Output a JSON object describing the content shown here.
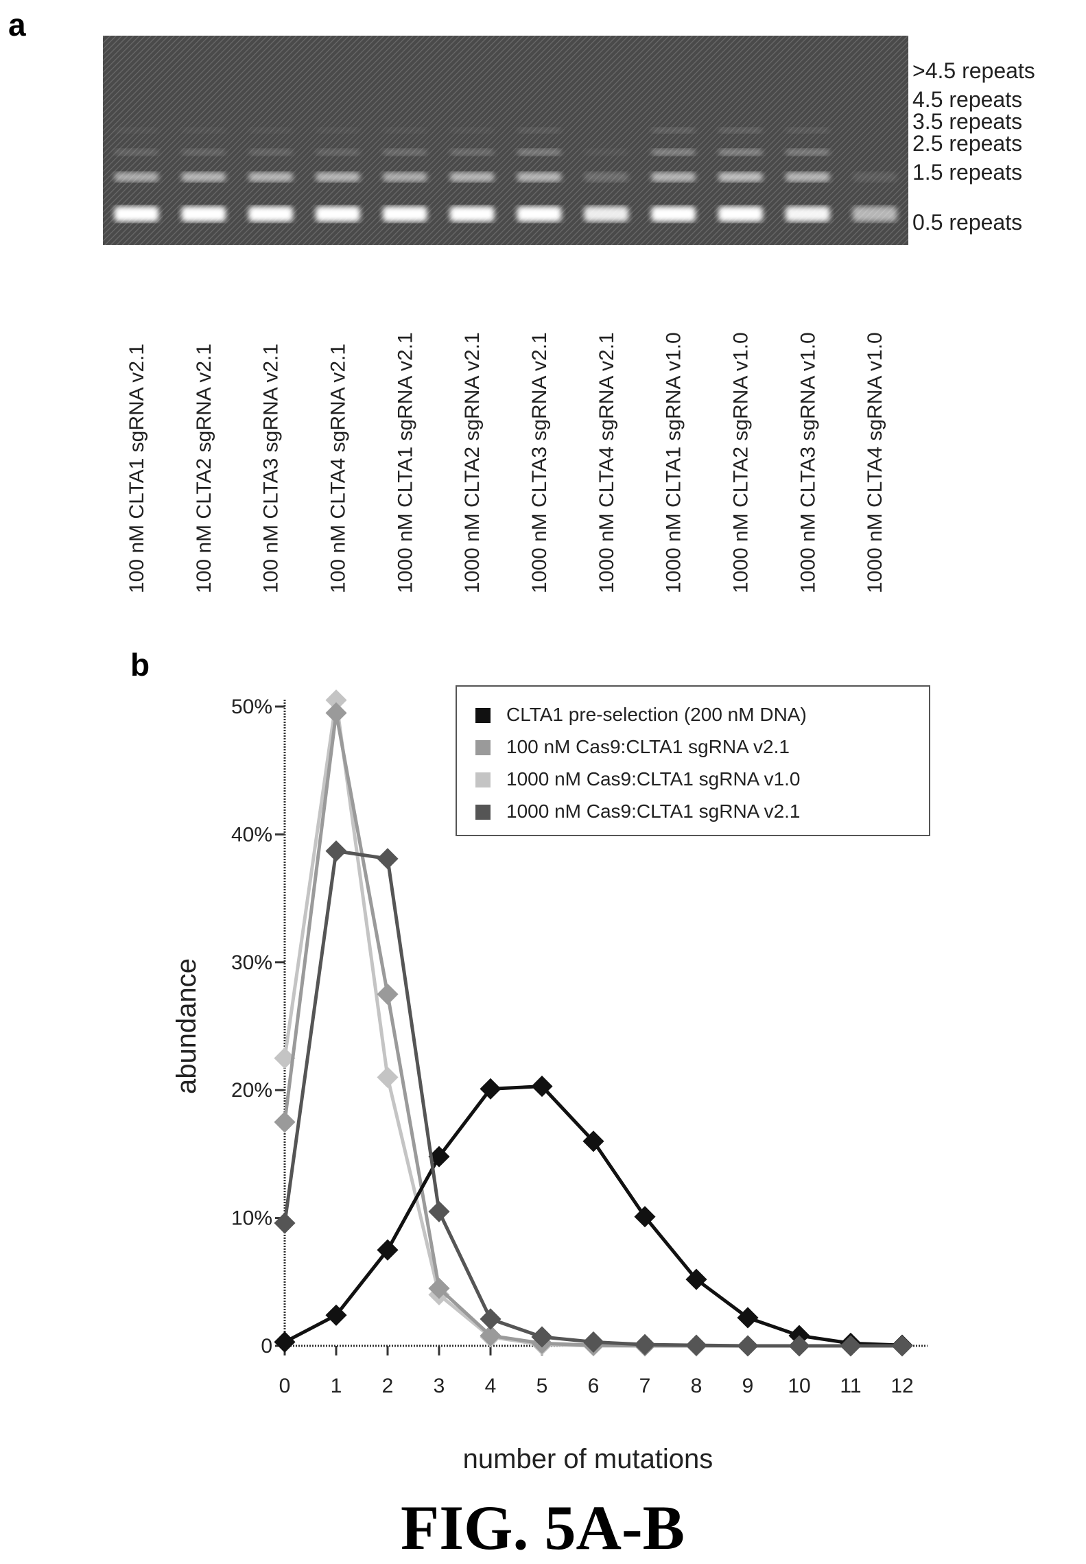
{
  "panel_a": {
    "letter": "a",
    "band_labels": [
      ">4.5 repeats",
      "4.5 repeats",
      "3.5 repeats",
      "2.5 repeats",
      "1.5 repeats",
      "0.5 repeats"
    ],
    "lanes": [
      {
        "label": "100 nM CLTA1 sgRNA v2.1",
        "bands": [
          1.0,
          0.55,
          0.15,
          0.05
        ]
      },
      {
        "label": "100 nM CLTA2 sgRNA v2.1",
        "bands": [
          1.0,
          0.6,
          0.15,
          0.05
        ]
      },
      {
        "label": "100 nM CLTA3 sgRNA v2.1",
        "bands": [
          1.0,
          0.6,
          0.15,
          0.05
        ]
      },
      {
        "label": "100 nM CLTA4 sgRNA v2.1",
        "bands": [
          1.0,
          0.6,
          0.15,
          0.05
        ]
      },
      {
        "label": "1000 nM CLTA1 sgRNA v2.1",
        "bands": [
          1.0,
          0.55,
          0.2,
          0.05
        ]
      },
      {
        "label": "1000 nM CLTA2 sgRNA v2.1",
        "bands": [
          1.0,
          0.6,
          0.2,
          0.05
        ]
      },
      {
        "label": "1000 nM CLTA3 sgRNA v2.1",
        "bands": [
          1.0,
          0.6,
          0.3,
          0.1
        ]
      },
      {
        "label": "1000 nM CLTA4 sgRNA v2.1",
        "bands": [
          0.9,
          0.2,
          0.05,
          0.0
        ]
      },
      {
        "label": "1000 nM CLTA1 sgRNA v1.0",
        "bands": [
          1.0,
          0.6,
          0.35,
          0.15
        ]
      },
      {
        "label": "1000 nM CLTA2 sgRNA v1.0",
        "bands": [
          1.0,
          0.65,
          0.35,
          0.15
        ]
      },
      {
        "label": "1000 nM CLTA3 sgRNA v1.0",
        "bands": [
          0.95,
          0.6,
          0.3,
          0.1
        ]
      },
      {
        "label": "1000 nM CLTA4 sgRNA v1.0",
        "bands": [
          0.6,
          0.1,
          0.0,
          0.0
        ]
      }
    ]
  },
  "panel_b": {
    "letter": "b",
    "chart_data": {
      "type": "line",
      "x": [
        0,
        1,
        2,
        3,
        4,
        5,
        6,
        7,
        8,
        9,
        10,
        11,
        12
      ],
      "xlabel": "number of mutations",
      "ylabel": "abundance",
      "ylim": [
        0,
        50
      ],
      "y_ticks": [
        "0",
        "10%",
        "20%",
        "30%",
        "40%",
        "50%"
      ],
      "y_tick_values": [
        0,
        10,
        20,
        30,
        40,
        50
      ],
      "x_ticks": [
        "0",
        "1",
        "2",
        "3",
        "4",
        "5",
        "6",
        "7",
        "8",
        "9",
        "10",
        "11",
        "12"
      ],
      "legend_position": "top-right",
      "series": [
        {
          "name": "CLTA1 pre-selection (200 nM DNA)",
          "color": "#111111",
          "values": [
            0.3,
            2.4,
            7.5,
            14.8,
            20.1,
            20.3,
            16.0,
            10.1,
            5.2,
            2.2,
            0.8,
            0.2,
            0.05
          ]
        },
        {
          "name": "100 nM Cas9:CLTA1 sgRNA v2.1",
          "color": "#9a9a9a",
          "values": [
            17.5,
            49.5,
            27.5,
            4.5,
            0.8,
            0.2,
            0.05,
            0.0,
            0.0,
            0.0,
            0.0,
            0.0,
            0.0
          ]
        },
        {
          "name": "1000 nM Cas9:CLTA1 sgRNA v1.0",
          "color": "#c4c4c4",
          "values": [
            22.5,
            50.5,
            21.0,
            4.0,
            0.7,
            0.1,
            0.0,
            0.0,
            0.0,
            0.0,
            0.0,
            0.0,
            0.0
          ]
        },
        {
          "name": "1000 nM Cas9:CLTA1 sgRNA v2.1",
          "color": "#555555",
          "values": [
            9.6,
            38.7,
            38.1,
            10.5,
            2.1,
            0.7,
            0.3,
            0.1,
            0.05,
            0.0,
            0.0,
            0.0,
            0.0
          ]
        }
      ]
    }
  },
  "caption": "FIG. 5A-B"
}
